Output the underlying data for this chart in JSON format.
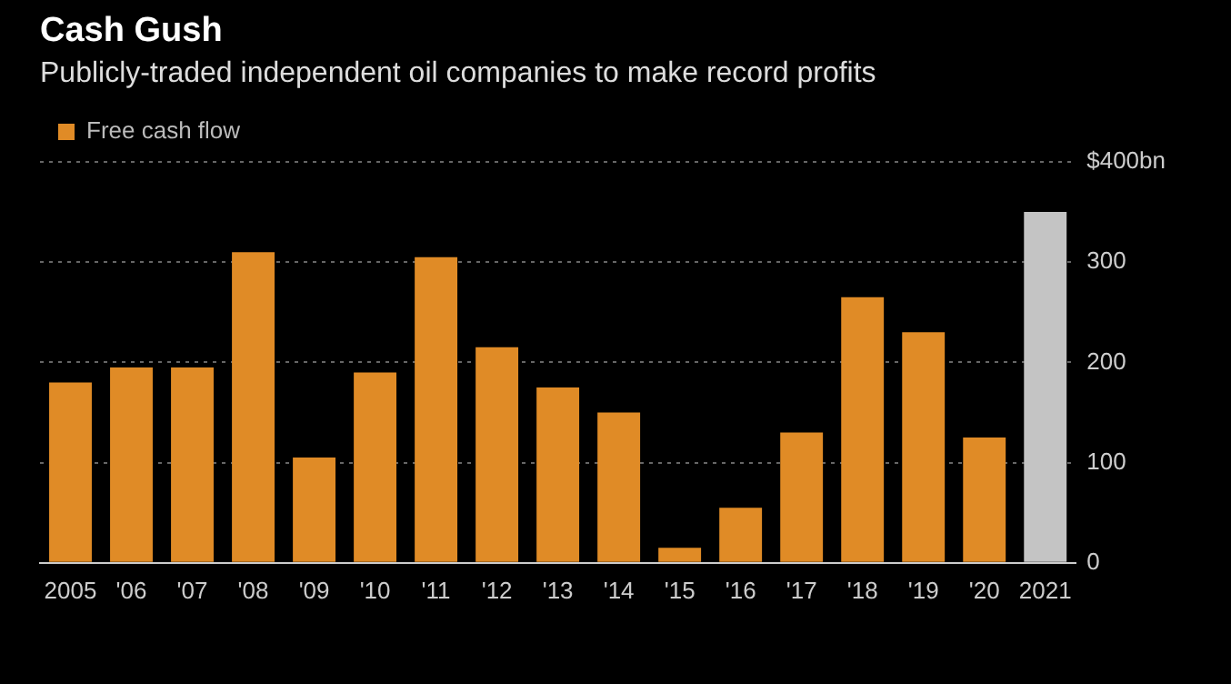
{
  "chart_data": {
    "type": "bar",
    "title": "Cash Gush",
    "subtitle": "Publicly-traded independent oil companies to make record profits",
    "categories": [
      "2005",
      "'06",
      "'07",
      "'08",
      "'09",
      "'10",
      "'11",
      "'12",
      "'13",
      "'14",
      "'15",
      "'16",
      "'17",
      "'18",
      "'19",
      "'20",
      "2021"
    ],
    "series": [
      {
        "name": "Free cash flow",
        "color": "#e08b26",
        "colors": [
          "#e08b26",
          "#e08b26",
          "#e08b26",
          "#e08b26",
          "#e08b26",
          "#e08b26",
          "#e08b26",
          "#e08b26",
          "#e08b26",
          "#e08b26",
          "#e08b26",
          "#e08b26",
          "#e08b26",
          "#e08b26",
          "#e08b26",
          "#e08b26",
          "#c4c4c4"
        ],
        "values": [
          180,
          195,
          195,
          310,
          105,
          190,
          305,
          215,
          175,
          150,
          15,
          55,
          130,
          265,
          230,
          125,
          350
        ]
      }
    ],
    "ylim": [
      0,
      400
    ],
    "yticks": [
      0,
      100,
      200,
      300,
      {
        "value": 400,
        "label": "$400bn"
      }
    ],
    "grid": "y",
    "legend": "top left"
  }
}
